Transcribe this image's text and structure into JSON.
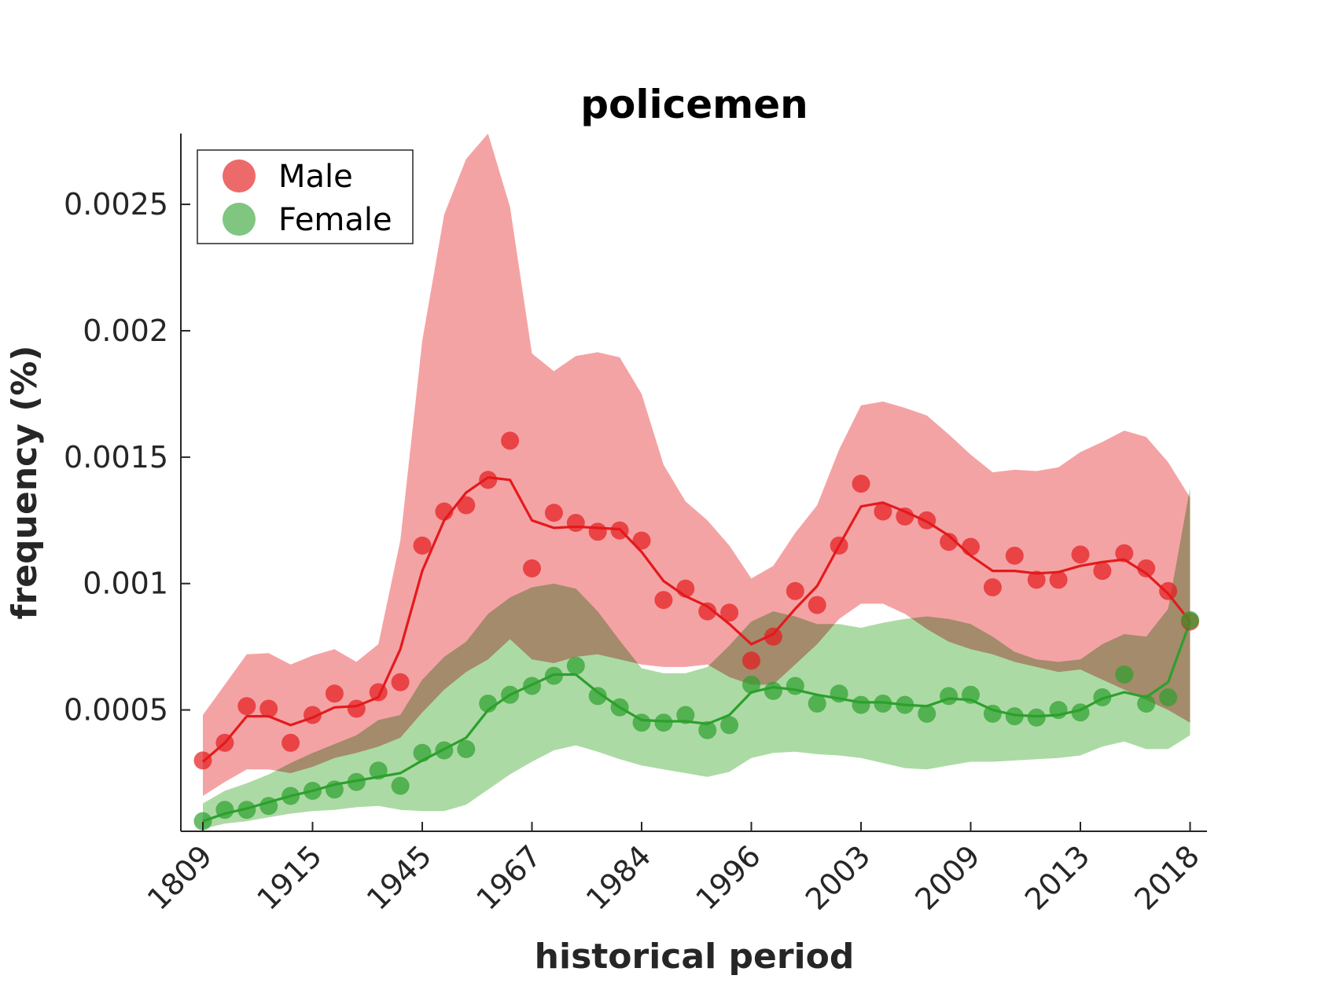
{
  "chart_data": {
    "type": "line",
    "title": "policemen",
    "xlabel": "historical period",
    "ylabel": "frequency (%)",
    "x_tick_labels": [
      "1809",
      "1915",
      "1945",
      "1967",
      "1984",
      "1996",
      "2003",
      "2009",
      "2013",
      "2018"
    ],
    "x_tick_index": [
      0,
      5,
      10,
      15,
      20,
      25,
      30,
      35,
      40,
      45
    ],
    "y_ticks": [
      0.0005,
      0.001,
      0.0015,
      0.002,
      0.0025
    ],
    "y_tick_labels": [
      "0.0005",
      "0.001",
      "0.0015",
      "0.002",
      "0.0025"
    ],
    "ylim": [
      2e-05,
      0.00278
    ],
    "grid": false,
    "legend_position": "top-left",
    "series": [
      {
        "name": "Male",
        "color": "#e41a1c",
        "band_color": "#f4a3a5",
        "points": [
          0.0003,
          0.00037,
          0.000515,
          0.000505,
          0.00037,
          0.00048,
          0.000565,
          0.000505,
          0.00057,
          0.00061,
          0.00115,
          0.001285,
          0.00131,
          0.00141,
          0.001565,
          0.00106,
          0.00128,
          0.00124,
          0.001205,
          0.00121,
          0.00117,
          0.000935,
          0.00098,
          0.00089,
          0.000885,
          0.000695,
          0.00079,
          0.00097,
          0.000915,
          0.00115,
          0.001395,
          0.001285,
          0.001265,
          0.00125,
          0.001165,
          0.001145,
          0.000985,
          0.00111,
          0.001015,
          0.001015,
          0.001115,
          0.00105,
          0.00112,
          0.00106,
          0.00097,
          0.00085
        ],
        "trend": [
          0.000295,
          0.00037,
          0.000475,
          0.000475,
          0.00044,
          0.00047,
          0.00051,
          0.000515,
          0.00055,
          0.00074,
          0.00105,
          0.00125,
          0.00136,
          0.00142,
          0.00141,
          0.00125,
          0.00122,
          0.001225,
          0.00122,
          0.001215,
          0.001125,
          0.00101,
          0.00095,
          0.00091,
          0.00084,
          0.00076,
          0.0008,
          0.0009,
          0.00099,
          0.00115,
          0.001305,
          0.00132,
          0.001285,
          0.001245,
          0.00119,
          0.00111,
          0.00105,
          0.00105,
          0.00104,
          0.001045,
          0.00107,
          0.001085,
          0.001095,
          0.00104,
          0.00096,
          0.00085
        ],
        "band_upper": [
          0.00048,
          0.0006,
          0.00072,
          0.000725,
          0.00068,
          0.000715,
          0.00074,
          0.00069,
          0.00076,
          0.00117,
          0.00196,
          0.00246,
          0.00268,
          0.00278,
          0.00249,
          0.00191,
          0.00184,
          0.0019,
          0.001915,
          0.001895,
          0.00175,
          0.00147,
          0.001325,
          0.00125,
          0.00115,
          0.00102,
          0.00107,
          0.0012,
          0.00131,
          0.00153,
          0.001705,
          0.00172,
          0.001695,
          0.001665,
          0.00159,
          0.00151,
          0.00144,
          0.00145,
          0.001445,
          0.00146,
          0.00152,
          0.00156,
          0.001605,
          0.00158,
          0.00148,
          0.00134
        ],
        "band_lower": [
          0.00016,
          0.000215,
          0.000265,
          0.000265,
          0.00025,
          0.000275,
          0.00031,
          0.00033,
          0.000355,
          0.00039,
          0.00049,
          0.00058,
          0.00065,
          0.0007,
          0.00078,
          0.0007,
          0.000685,
          0.00071,
          0.00072,
          0.0007,
          0.00068,
          0.00067,
          0.00067,
          0.00068,
          0.00063,
          0.0006,
          0.0006,
          0.00068,
          0.00076,
          0.00086,
          0.00092,
          0.00092,
          0.00088,
          0.00082,
          0.00077,
          0.00074,
          0.00072,
          0.00069,
          0.00067,
          0.00065,
          0.00066,
          0.00062,
          0.00058,
          0.00054,
          0.0005,
          0.00045
        ]
      },
      {
        "name": "Female",
        "color": "#2ca02c",
        "band_color": "#a8d8a0",
        "points": [
          6e-05,
          0.000105,
          0.000105,
          0.00012,
          0.00016,
          0.00018,
          0.000185,
          0.000215,
          0.00026,
          0.0002,
          0.00033,
          0.00034,
          0.000345,
          0.000525,
          0.00056,
          0.000595,
          0.000635,
          0.000675,
          0.000555,
          0.00051,
          0.00045,
          0.00045,
          0.00048,
          0.00042,
          0.00044,
          0.0006,
          0.000575,
          0.000595,
          0.000525,
          0.000565,
          0.00052,
          0.000525,
          0.00052,
          0.000485,
          0.000555,
          0.00056,
          0.000485,
          0.000475,
          0.00047,
          0.0005,
          0.00049,
          0.00055,
          0.00064,
          0.000525,
          0.00055,
          0.000855
        ],
        "trend": [
          6e-05,
          9e-05,
          0.00011,
          0.000135,
          0.00016,
          0.00018,
          0.000205,
          0.00022,
          0.000235,
          0.00025,
          0.0003,
          0.000345,
          0.00039,
          0.0005,
          0.00056,
          0.0006,
          0.00064,
          0.00064,
          0.00057,
          0.00051,
          0.00046,
          0.000455,
          0.000455,
          0.000445,
          0.00048,
          0.00057,
          0.00059,
          0.00058,
          0.00056,
          0.000545,
          0.00053,
          0.00053,
          0.00052,
          0.000515,
          0.000545,
          0.00054,
          0.0005,
          0.00048,
          0.000475,
          0.00048,
          0.0005,
          0.000545,
          0.00057,
          0.00055,
          0.00061,
          0.00085
        ],
        "band_upper": [
          0.00013,
          0.00018,
          0.00021,
          0.000245,
          0.00029,
          0.00033,
          0.000365,
          0.0004,
          0.00046,
          0.00048,
          0.00062,
          0.00071,
          0.00077,
          0.00088,
          0.000945,
          0.000985,
          0.001,
          0.00098,
          0.00089,
          0.000775,
          0.000665,
          0.000645,
          0.000645,
          0.00067,
          0.000755,
          0.00085,
          0.00089,
          0.00087,
          0.00084,
          0.00084,
          0.000825,
          0.000845,
          0.00086,
          0.00087,
          0.00086,
          0.00084,
          0.00079,
          0.00073,
          0.0007,
          0.00069,
          0.0007,
          0.00076,
          0.0008,
          0.00079,
          0.0009,
          0.00138
        ],
        "band_lower": [
          3e-05,
          5e-05,
          6e-05,
          7.5e-05,
          9e-05,
          0.0001,
          0.000105,
          0.000115,
          0.00012,
          0.000105,
          0.0001,
          0.0001,
          0.000125,
          0.000185,
          0.000245,
          0.000295,
          0.00034,
          0.00036,
          0.000335,
          0.000305,
          0.00028,
          0.000265,
          0.00025,
          0.000235,
          0.000255,
          0.00031,
          0.00033,
          0.000335,
          0.000325,
          0.00032,
          0.00031,
          0.00029,
          0.00027,
          0.000265,
          0.00028,
          0.000295,
          0.000295,
          0.0003,
          0.000305,
          0.00031,
          0.00032,
          0.000355,
          0.000375,
          0.000345,
          0.000345,
          0.0004
        ]
      }
    ]
  }
}
